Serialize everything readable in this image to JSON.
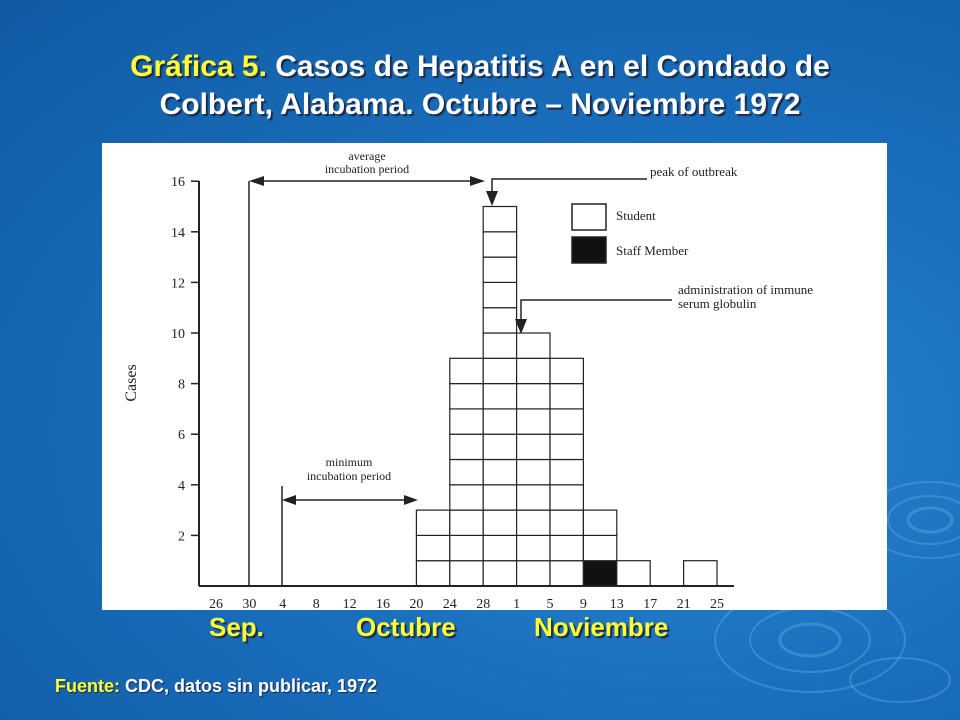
{
  "title": {
    "prefix": "Gráfica 5.",
    "line1": "Casos de Hepatitis A en el Condado de",
    "line2": "Colbert, Alabama. Octubre – Noviembre 1972"
  },
  "months": [
    "Sep.",
    "Octubre",
    "Noviembre"
  ],
  "source": {
    "label": "Fuente:",
    "text": "CDC, datos sin publicar, 1972"
  },
  "chart_data": {
    "type": "bar",
    "ylabel": "Cases",
    "xlabel": "",
    "ylim": [
      0,
      16
    ],
    "yticks": [
      2,
      4,
      6,
      8,
      10,
      12,
      14,
      16
    ],
    "xticks": [
      "26",
      "30",
      "4",
      "8",
      "12",
      "16",
      "20",
      "24",
      "28",
      "1",
      "5",
      "9",
      "13",
      "17",
      "21",
      "25"
    ],
    "bins": [
      "20–24",
      "24–28",
      "28–1",
      "1–5",
      "5–9",
      "9–13",
      "13–17",
      "17–21",
      "21–25"
    ],
    "series": [
      {
        "name": "Student",
        "values": [
          3,
          9,
          15,
          10,
          9,
          2,
          1,
          0,
          1
        ]
      },
      {
        "name": "Staff Member",
        "values": [
          0,
          0,
          0,
          0,
          0,
          1,
          0,
          0,
          0
        ]
      }
    ],
    "legend": {
      "placement": "top-right",
      "items": [
        "Student",
        "Staff Member"
      ]
    },
    "annotations": {
      "average_incubation": [
        "average",
        "incubation period"
      ],
      "minimum_incubation": [
        "minimum",
        "incubation period"
      ],
      "peak": "peak of outbreak",
      "globulin": [
        "administration of immune",
        "serum globulin"
      ]
    },
    "colors": {
      "student": "#ffffff",
      "staff": "#111111",
      "ink": "#222222"
    }
  }
}
